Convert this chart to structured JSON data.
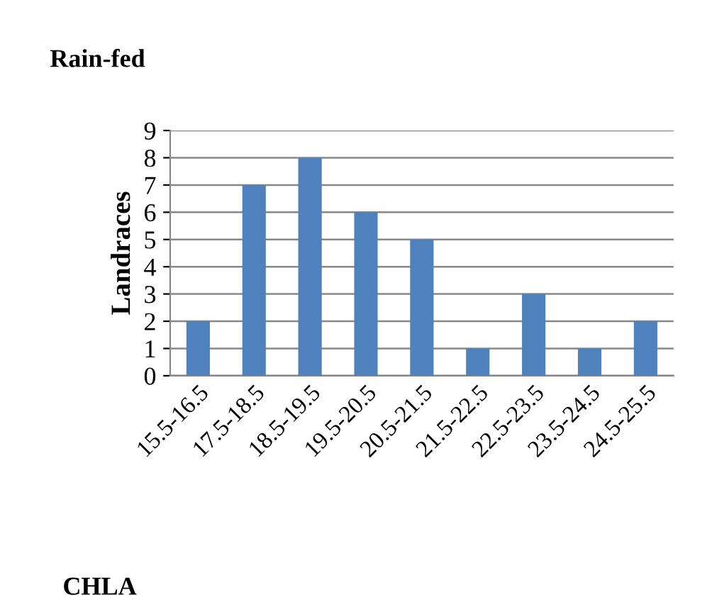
{
  "chart_data": {
    "type": "bar",
    "title": "Rain-fed",
    "xlabel": "CHLA",
    "ylabel": "Landraces",
    "categories": [
      "15.5-16.5",
      "17.5-18.5",
      "18.5-19.5",
      "19.5-20.5",
      "20.5-21.5",
      "21.5-22.5",
      "22.5-23.5",
      "23.5-24.5",
      "24.5-25.5"
    ],
    "values": [
      2,
      7,
      8,
      6,
      5,
      1,
      3,
      1,
      2
    ],
    "color": "#4f81bd",
    "ylim": [
      0,
      9
    ],
    "yticks": [
      0,
      1,
      2,
      3,
      4,
      5,
      6,
      7,
      8,
      9
    ],
    "grid": "y"
  }
}
